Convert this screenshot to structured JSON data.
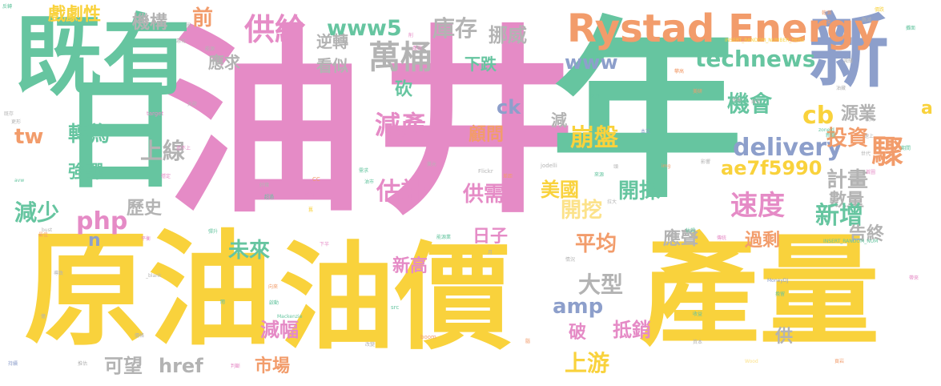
{
  "palette": {
    "yellow": "#F9D23C",
    "pink": "#E58BC6",
    "teal": "#66C5A0",
    "orange": "#F29C6B",
    "blue": "#8D9FCB",
    "gray": "#B3B3B3",
    "green": "#A6D854",
    "lightyellow": "#FCE28A"
  },
  "words": [
    {
      "text": "油",
      "color": "pink"
    },
    {
      "text": "井",
      "color": "pink"
    },
    {
      "text": "年",
      "color": "teal"
    },
    {
      "text": "原油",
      "color": "yellow"
    },
    {
      "text": "油價",
      "color": "yellow"
    },
    {
      "text": "產量",
      "color": "yellow"
    },
    {
      "text": "既有",
      "color": "teal"
    },
    {
      "text": "新",
      "color": "blue"
    },
    {
      "text": "日",
      "color": "teal"
    },
    {
      "text": "Rystad Energy",
      "color": "orange"
    },
    {
      "text": "萬桶",
      "color": "gray"
    },
    {
      "text": "供給",
      "color": "pink"
    },
    {
      "text": "www5",
      "color": "teal"
    },
    {
      "text": "庫存",
      "color": "gray"
    },
    {
      "text": "挪威",
      "color": "gray"
    },
    {
      "text": "technews",
      "color": "teal"
    },
    {
      "text": "www",
      "color": "blue"
    },
    {
      "text": "戲劇性",
      "color": "yellow"
    },
    {
      "text": "機構",
      "color": "gray"
    },
    {
      "text": "前",
      "color": "orange"
    },
    {
      "text": "應求",
      "color": "gray"
    },
    {
      "text": "逆轉",
      "color": "gray"
    },
    {
      "text": "看似",
      "color": "gray"
    },
    {
      "text": "下跌",
      "color": "teal"
    },
    {
      "text": "機會",
      "color": "teal"
    },
    {
      "text": "ck",
      "color": "blue"
    },
    {
      "text": "減產",
      "color": "pink"
    },
    {
      "text": "cb",
      "color": "yellow"
    },
    {
      "text": "源業",
      "color": "gray"
    },
    {
      "text": "驟",
      "color": "orange"
    },
    {
      "text": "a",
      "color": "yellow"
    },
    {
      "text": "tw",
      "color": "orange"
    },
    {
      "text": "轉為",
      "color": "teal"
    },
    {
      "text": "上線",
      "color": "gray"
    },
    {
      "text": "崩盤",
      "color": "yellow"
    },
    {
      "text": "顧問",
      "color": "orange"
    },
    {
      "text": "delivery",
      "color": "blue"
    },
    {
      "text": "投資",
      "color": "orange"
    },
    {
      "text": "ae7f5990",
      "color": "yellow"
    },
    {
      "text": "計畫",
      "color": "gray"
    },
    {
      "text": "強彈",
      "color": "teal"
    },
    {
      "text": "估計",
      "color": "pink"
    },
    {
      "text": "供需",
      "color": "pink"
    },
    {
      "text": "速度",
      "color": "pink"
    },
    {
      "text": "數量",
      "color": "gray"
    },
    {
      "text": "減少",
      "color": "teal"
    },
    {
      "text": "歷史",
      "color": "gray"
    },
    {
      "text": "php",
      "color": "pink"
    },
    {
      "text": "n",
      "color": "blue"
    },
    {
      "text": "美國",
      "color": "yellow"
    },
    {
      "text": "開挖",
      "color": "lightyellow"
    },
    {
      "text": "開採",
      "color": "teal"
    },
    {
      "text": "新增",
      "color": "teal"
    },
    {
      "text": "告終",
      "color": "gray"
    },
    {
      "text": "日子",
      "color": "pink"
    },
    {
      "text": "未來",
      "color": "teal"
    },
    {
      "text": "平均",
      "color": "orange"
    },
    {
      "text": "應聲",
      "color": "gray"
    },
    {
      "text": "過剩",
      "color": "orange"
    },
    {
      "text": "新高",
      "color": "pink"
    },
    {
      "text": "大型",
      "color": "gray"
    },
    {
      "text": "amp",
      "color": "blue"
    },
    {
      "text": "減幅",
      "color": "pink"
    },
    {
      "text": "破",
      "color": "pink"
    },
    {
      "text": "抵銷",
      "color": "pink"
    },
    {
      "text": "供",
      "color": "gray"
    },
    {
      "text": "可望",
      "color": "gray"
    },
    {
      "text": "href",
      "color": "gray"
    },
    {
      "text": "市場",
      "color": "orange"
    },
    {
      "text": "上游",
      "color": "yellow"
    },
    {
      "text": "砍",
      "color": "teal"
    },
    {
      "text": "減",
      "color": "gray"
    },
    {
      "text": "Flickr",
      "color": "gray"
    },
    {
      "text": "jodelli",
      "color": "gray"
    },
    {
      "text": "target",
      "color": "pink"
    },
    {
      "text": "INSERT_RANDOM_NUMBER_HERE",
      "color": "yellow"
    },
    {
      "text": "INSERT_RANDOM_NUM",
      "color": "teal"
    },
    {
      "text": "MoneyDJ",
      "color": "blue"
    },
    {
      "text": "Mackenzie",
      "color": "teal"
    },
    {
      "text": "boom",
      "color": "orange"
    },
    {
      "text": "Wood",
      "color": "lightyellow"
    },
    {
      "text": "_blank",
      "color": "gray"
    },
    {
      "text": "zoneid",
      "color": "teal"
    },
    {
      "text": "avw",
      "color": "teal"
    },
    {
      "text": "bust",
      "color": "gray"
    },
    {
      "text": "src",
      "color": "teal"
    },
    {
      "text": "img",
      "color": "orange"
    },
    {
      "text": "CC",
      "color": "orange"
    },
    {
      "text": "本文",
      "color": "blue"
    },
    {
      "text": "反轉",
      "color": "teal"
    },
    {
      "text": "既存",
      "color": "gray"
    },
    {
      "text": "更形",
      "color": "gray"
    },
    {
      "text": "大砍",
      "color": "gray"
    },
    {
      "text": "追不上",
      "color": "pink"
    },
    {
      "text": "穩定",
      "color": "pink"
    },
    {
      "text": "需求",
      "color": "teal"
    },
    {
      "text": "油市",
      "color": "teal"
    },
    {
      "text": "美元",
      "color": "gray"
    },
    {
      "text": "好幾",
      "color": "gray"
    },
    {
      "text": "超過",
      "color": "teal"
    },
    {
      "text": "轉載",
      "color": "pink"
    },
    {
      "text": "舊",
      "color": "yellow"
    },
    {
      "text": "能源業",
      "color": "teal"
    },
    {
      "text": "最佳",
      "color": "orange"
    },
    {
      "text": "平衡",
      "color": "pink"
    },
    {
      "text": "彈升",
      "color": "teal"
    },
    {
      "text": "下半",
      "color": "pink"
    },
    {
      "text": "向來",
      "color": "orange"
    },
    {
      "text": "啟動",
      "color": "teal"
    },
    {
      "text": "價格",
      "color": "gray"
    },
    {
      "text": "推估",
      "color": "gray"
    },
    {
      "text": "持續",
      "color": "blue"
    },
    {
      "text": "改變",
      "color": "gray"
    },
    {
      "text": "判斷",
      "color": "pink"
    },
    {
      "text": "海外",
      "color": "teal"
    },
    {
      "text": "乾涸",
      "color": "orange"
    },
    {
      "text": "縣減",
      "color": "gray"
    },
    {
      "text": "攤面",
      "color": "teal"
    },
    {
      "text": "失衡",
      "color": "gray"
    },
    {
      "text": "油藏",
      "color": "gray"
    },
    {
      "text": "新聞",
      "color": "teal"
    },
    {
      "text": "導致",
      "color": "gray"
    },
    {
      "text": "情況",
      "color": "gray"
    },
    {
      "text": "傳統",
      "color": "pink"
    },
    {
      "text": "枯竭",
      "color": "teal"
    },
    {
      "text": "拉大",
      "color": "gray"
    },
    {
      "text": "來源",
      "color": "teal"
    },
    {
      "text": "世代",
      "color": "gray"
    },
    {
      "text": "首圖",
      "color": "pink"
    },
    {
      "text": "帶來",
      "color": "pink"
    },
    {
      "text": "腦",
      "color": "orange"
    },
    {
      "text": "較高",
      "color": "gray"
    },
    {
      "text": "挽留",
      "color": "teal"
    },
    {
      "text": "閱",
      "color": "teal"
    },
    {
      "text": "圖",
      "color": "gray"
    },
    {
      "text": "億",
      "color": "gray"
    },
    {
      "text": "月",
      "color": "gray"
    },
    {
      "text": "頭",
      "color": "gray"
    },
    {
      "text": "惡化",
      "color": "gray"
    },
    {
      "text": "能源",
      "color": "gray"
    },
    {
      "text": "削",
      "color": "pink"
    },
    {
      "text": "差距",
      "color": "orange"
    },
    {
      "text": "錄至",
      "color": "gray"
    },
    {
      "text": "速上",
      "color": "gray"
    },
    {
      "text": "產出",
      "color": "pink"
    },
    {
      "text": "期間",
      "color": "teal"
    },
    {
      "text": "攀高",
      "color": "orange"
    },
    {
      "text": "美研",
      "color": "orange"
    },
    {
      "text": "損失",
      "color": "orange"
    },
    {
      "text": "減緩",
      "color": "gray"
    },
    {
      "text": "價跌",
      "color": "yellow"
    },
    {
      "text": "影響",
      "color": "gray"
    },
    {
      "text": "收益",
      "color": "teal"
    },
    {
      "text": "資本",
      "color": "gray"
    },
    {
      "text": "頁岩",
      "color": "orange"
    }
  ]
}
